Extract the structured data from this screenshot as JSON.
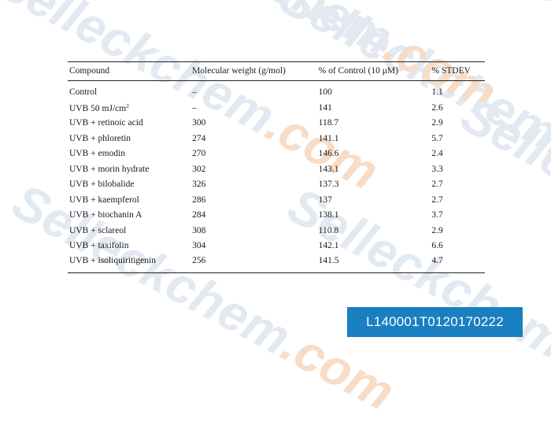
{
  "watermark": {
    "text": "Selleckchem",
    "suffix": ".com"
  },
  "table": {
    "headers": [
      "Compound",
      "Molecular weight (g/mol)",
      "% of Control (10 μM)",
      "% STDEV"
    ],
    "rows": [
      {
        "compound": "Control",
        "mw": "–",
        "control": "100",
        "stdev": "1.1"
      },
      {
        "compound": "UVB 50 mJ/cm",
        "compound_sup": "2",
        "mw": "–",
        "control": "141",
        "stdev": "2.6"
      },
      {
        "compound": "UVB + retinoic acid",
        "mw": "300",
        "control": "118.7",
        "stdev": "2.9"
      },
      {
        "compound": "UVB + phloretin",
        "mw": "274",
        "control": "141.1",
        "stdev": "5.7"
      },
      {
        "compound": "UVB + emodin",
        "mw": "270",
        "control": "146.6",
        "stdev": "2.4"
      },
      {
        "compound": "UVB + morin hydrate",
        "mw": "302",
        "control": "143.1",
        "stdev": "3.3"
      },
      {
        "compound": "UVB + bilobalide",
        "mw": "326",
        "control": "137.3",
        "stdev": "2.7"
      },
      {
        "compound": "UVB + kaempferol",
        "mw": "286",
        "control": "137",
        "stdev": "2.7"
      },
      {
        "compound": "UVB + biochanin A",
        "mw": "284",
        "control": "138.1",
        "stdev": "3.7"
      },
      {
        "compound": "UVB + sclareol",
        "mw": "308",
        "control": "110.8",
        "stdev": "2.9"
      },
      {
        "compound": "UVB + taxifolin",
        "mw": "304",
        "control": "142.1",
        "stdev": "6.6"
      },
      {
        "compound": "UVB + isoliquiritigenin",
        "mw": "256",
        "control": "141.5",
        "stdev": "4.7"
      }
    ]
  },
  "badge": {
    "lot": "L140001T0120170222",
    "color": "#1a7fc1"
  }
}
